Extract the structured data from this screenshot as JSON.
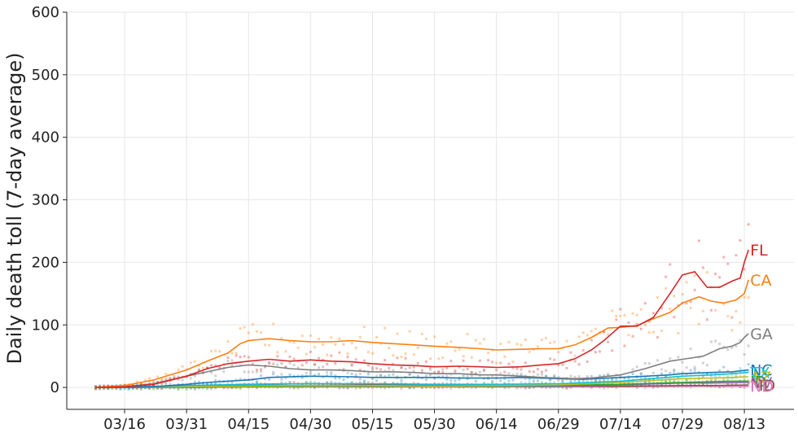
{
  "chart_data": {
    "type": "line",
    "ylabel": "Daily death toll (7-day average)",
    "ylim": [
      -35,
      600
    ],
    "yticks": [
      0,
      100,
      200,
      300,
      400,
      500,
      600
    ],
    "xlim": [
      "2020-03-02",
      "2020-08-25"
    ],
    "xtick_dates": [
      "2020-03-16",
      "2020-03-31",
      "2020-04-15",
      "2020-04-30",
      "2020-05-15",
      "2020-05-30",
      "2020-06-14",
      "2020-06-29",
      "2020-07-14",
      "2020-07-29",
      "2020-08-13"
    ],
    "xtick_labels": [
      "03/16",
      "03/31",
      "04/15",
      "04/30",
      "05/15",
      "05/30",
      "06/14",
      "06/29",
      "07/14",
      "07/29",
      "08/13"
    ],
    "grid": true,
    "legend": "end-of-line labels",
    "series": [
      {
        "name": "FL",
        "color": "#d62728",
        "points": [
          [
            "2020-03-09",
            0
          ],
          [
            "2020-03-16",
            1
          ],
          [
            "2020-03-23",
            5
          ],
          [
            "2020-03-31",
            18
          ],
          [
            "2020-04-05",
            30
          ],
          [
            "2020-04-10",
            38
          ],
          [
            "2020-04-15",
            42
          ],
          [
            "2020-04-20",
            45
          ],
          [
            "2020-04-25",
            42
          ],
          [
            "2020-04-30",
            44
          ],
          [
            "2020-05-05",
            42
          ],
          [
            "2020-05-10",
            41
          ],
          [
            "2020-05-15",
            38
          ],
          [
            "2020-05-20",
            36
          ],
          [
            "2020-05-25",
            35
          ],
          [
            "2020-05-30",
            33
          ],
          [
            "2020-06-05",
            34
          ],
          [
            "2020-06-10",
            33
          ],
          [
            "2020-06-14",
            32
          ],
          [
            "2020-06-20",
            33
          ],
          [
            "2020-06-25",
            36
          ],
          [
            "2020-06-29",
            38
          ],
          [
            "2020-07-03",
            46
          ],
          [
            "2020-07-07",
            60
          ],
          [
            "2020-07-10",
            75
          ],
          [
            "2020-07-14",
            98
          ],
          [
            "2020-07-18",
            98
          ],
          [
            "2020-07-22",
            112
          ],
          [
            "2020-07-26",
            150
          ],
          [
            "2020-07-29",
            180
          ],
          [
            "2020-08-01",
            185
          ],
          [
            "2020-08-04",
            160
          ],
          [
            "2020-08-07",
            160
          ],
          [
            "2020-08-10",
            170
          ],
          [
            "2020-08-12",
            175
          ],
          [
            "2020-08-13",
            200
          ],
          [
            "2020-08-14",
            220
          ]
        ]
      },
      {
        "name": "CA",
        "color": "#ff7f0e",
        "points": [
          [
            "2020-03-09",
            0
          ],
          [
            "2020-03-16",
            3
          ],
          [
            "2020-03-23",
            12
          ],
          [
            "2020-03-31",
            28
          ],
          [
            "2020-04-05",
            42
          ],
          [
            "2020-04-10",
            55
          ],
          [
            "2020-04-13",
            70
          ],
          [
            "2020-04-15",
            75
          ],
          [
            "2020-04-20",
            78
          ],
          [
            "2020-04-25",
            75
          ],
          [
            "2020-04-30",
            73
          ],
          [
            "2020-05-05",
            73
          ],
          [
            "2020-05-10",
            75
          ],
          [
            "2020-05-15",
            72
          ],
          [
            "2020-05-20",
            70
          ],
          [
            "2020-05-25",
            68
          ],
          [
            "2020-05-30",
            66
          ],
          [
            "2020-06-05",
            64
          ],
          [
            "2020-06-10",
            62
          ],
          [
            "2020-06-14",
            60
          ],
          [
            "2020-06-20",
            61
          ],
          [
            "2020-06-25",
            62
          ],
          [
            "2020-06-29",
            62
          ],
          [
            "2020-07-03",
            68
          ],
          [
            "2020-07-07",
            80
          ],
          [
            "2020-07-11",
            95
          ],
          [
            "2020-07-14",
            96
          ],
          [
            "2020-07-18",
            99
          ],
          [
            "2020-07-22",
            110
          ],
          [
            "2020-07-26",
            120
          ],
          [
            "2020-07-29",
            135
          ],
          [
            "2020-08-02",
            145
          ],
          [
            "2020-08-05",
            138
          ],
          [
            "2020-08-08",
            135
          ],
          [
            "2020-08-11",
            140
          ],
          [
            "2020-08-13",
            150
          ],
          [
            "2020-08-14",
            172
          ]
        ]
      },
      {
        "name": "GA",
        "color": "#7f7f7f",
        "points": [
          [
            "2020-03-09",
            0
          ],
          [
            "2020-03-16",
            1
          ],
          [
            "2020-03-23",
            6
          ],
          [
            "2020-03-31",
            18
          ],
          [
            "2020-04-05",
            25
          ],
          [
            "2020-04-10",
            32
          ],
          [
            "2020-04-15",
            36
          ],
          [
            "2020-04-20",
            34
          ],
          [
            "2020-04-25",
            30
          ],
          [
            "2020-04-30",
            28
          ],
          [
            "2020-05-05",
            28
          ],
          [
            "2020-05-10",
            27
          ],
          [
            "2020-05-15",
            25
          ],
          [
            "2020-05-20",
            25
          ],
          [
            "2020-05-25",
            24
          ],
          [
            "2020-05-30",
            22
          ],
          [
            "2020-06-05",
            22
          ],
          [
            "2020-06-10",
            20
          ],
          [
            "2020-06-14",
            20
          ],
          [
            "2020-06-20",
            18
          ],
          [
            "2020-06-25",
            16
          ],
          [
            "2020-06-29",
            15
          ],
          [
            "2020-07-03",
            14
          ],
          [
            "2020-07-07",
            15
          ],
          [
            "2020-07-14",
            20
          ],
          [
            "2020-07-20",
            30
          ],
          [
            "2020-07-26",
            42
          ],
          [
            "2020-07-29",
            45
          ],
          [
            "2020-08-03",
            50
          ],
          [
            "2020-08-07",
            62
          ],
          [
            "2020-08-10",
            66
          ],
          [
            "2020-08-12",
            72
          ],
          [
            "2020-08-13",
            80
          ],
          [
            "2020-08-14",
            86
          ]
        ]
      },
      {
        "name": "NC",
        "color": "#1f77b4",
        "points": [
          [
            "2020-03-09",
            0
          ],
          [
            "2020-03-16",
            0
          ],
          [
            "2020-03-25",
            2
          ],
          [
            "2020-03-31",
            5
          ],
          [
            "2020-04-05",
            8
          ],
          [
            "2020-04-15",
            12
          ],
          [
            "2020-04-20",
            16
          ],
          [
            "2020-04-30",
            18
          ],
          [
            "2020-05-10",
            17
          ],
          [
            "2020-05-15",
            16
          ],
          [
            "2020-05-20",
            16
          ],
          [
            "2020-05-30",
            16
          ],
          [
            "2020-06-05",
            15
          ],
          [
            "2020-06-14",
            15
          ],
          [
            "2020-06-20",
            16
          ],
          [
            "2020-06-29",
            14
          ],
          [
            "2020-07-05",
            13
          ],
          [
            "2020-07-14",
            16
          ],
          [
            "2020-07-20",
            18
          ],
          [
            "2020-07-26",
            20
          ],
          [
            "2020-07-29",
            22
          ],
          [
            "2020-08-05",
            24
          ],
          [
            "2020-08-10",
            25
          ],
          [
            "2020-08-14",
            28
          ]
        ]
      },
      {
        "name": "TX",
        "color": "#17becf",
        "points": [
          [
            "2020-03-09",
            0
          ],
          [
            "2020-03-20",
            1
          ],
          [
            "2020-03-31",
            3
          ],
          [
            "2020-04-15",
            5
          ],
          [
            "2020-04-30",
            6
          ],
          [
            "2020-05-15",
            6
          ],
          [
            "2020-05-30",
            5
          ],
          [
            "2020-06-14",
            5
          ],
          [
            "2020-06-29",
            6
          ],
          [
            "2020-07-14",
            10
          ],
          [
            "2020-07-29",
            18
          ],
          [
            "2020-08-05",
            20
          ],
          [
            "2020-08-10",
            22
          ],
          [
            "2020-08-14",
            24
          ]
        ]
      },
      {
        "name": "AZ",
        "color": "#bcbd22",
        "points": [
          [
            "2020-03-09",
            0
          ],
          [
            "2020-03-31",
            1
          ],
          [
            "2020-04-15",
            2
          ],
          [
            "2020-04-30",
            3
          ],
          [
            "2020-05-15",
            3
          ],
          [
            "2020-05-30",
            2
          ],
          [
            "2020-06-14",
            3
          ],
          [
            "2020-06-29",
            4
          ],
          [
            "2020-07-14",
            8
          ],
          [
            "2020-07-29",
            14
          ],
          [
            "2020-08-05",
            15
          ],
          [
            "2020-08-10",
            16
          ],
          [
            "2020-08-14",
            17
          ]
        ]
      },
      {
        "name": "ID",
        "color": "#2ca02c",
        "points": [
          [
            "2020-03-09",
            0
          ],
          [
            "2020-03-31",
            0
          ],
          [
            "2020-04-15",
            1
          ],
          [
            "2020-04-30",
            2
          ],
          [
            "2020-05-15",
            2
          ],
          [
            "2020-05-30",
            2
          ],
          [
            "2020-06-14",
            2
          ],
          [
            "2020-06-29",
            3
          ],
          [
            "2020-07-14",
            5
          ],
          [
            "2020-07-29",
            8
          ],
          [
            "2020-08-05",
            9
          ],
          [
            "2020-08-10",
            10
          ],
          [
            "2020-08-14",
            10
          ]
        ]
      },
      {
        "name": "NV",
        "color": "#9467bd",
        "points": [
          [
            "2020-03-09",
            0
          ],
          [
            "2020-03-31",
            1
          ],
          [
            "2020-04-15",
            3
          ],
          [
            "2020-04-30",
            3
          ],
          [
            "2020-05-15",
            2
          ],
          [
            "2020-05-30",
            2
          ],
          [
            "2020-06-14",
            2
          ],
          [
            "2020-06-29",
            2
          ],
          [
            "2020-07-14",
            4
          ],
          [
            "2020-07-29",
            7
          ],
          [
            "2020-08-05",
            7
          ],
          [
            "2020-08-14",
            8
          ]
        ]
      },
      {
        "name": "MD",
        "color": "#8c564b",
        "points": [
          [
            "2020-03-09",
            0
          ],
          [
            "2020-03-31",
            2
          ],
          [
            "2020-04-15",
            5
          ],
          [
            "2020-04-30",
            6
          ],
          [
            "2020-05-15",
            5
          ],
          [
            "2020-05-30",
            4
          ],
          [
            "2020-06-14",
            3
          ],
          [
            "2020-06-29",
            2
          ],
          [
            "2020-07-14",
            2
          ],
          [
            "2020-07-29",
            3
          ],
          [
            "2020-08-05",
            3
          ],
          [
            "2020-08-14",
            4
          ]
        ]
      },
      {
        "name": "ND",
        "color": "#e377c2",
        "points": [
          [
            "2020-03-09",
            0
          ],
          [
            "2020-03-31",
            0
          ],
          [
            "2020-04-15",
            1
          ],
          [
            "2020-04-30",
            1
          ],
          [
            "2020-05-15",
            1
          ],
          [
            "2020-05-30",
            1
          ],
          [
            "2020-06-14",
            1
          ],
          [
            "2020-06-29",
            1
          ],
          [
            "2020-07-14",
            1
          ],
          [
            "2020-07-29",
            2
          ],
          [
            "2020-08-14",
            2
          ]
        ]
      }
    ]
  }
}
